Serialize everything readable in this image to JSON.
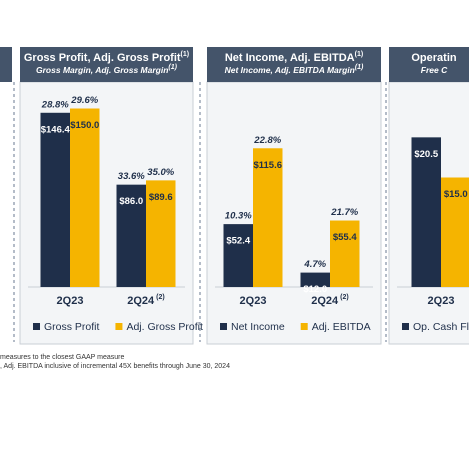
{
  "chart_data": [
    {
      "type": "bar",
      "title": "Gross Profit, Adj. Gross Profit",
      "title_note": "(1)",
      "subtitle": "Gross Margin, Adj. Gross Margin",
      "subtitle_note": "(1)",
      "categories": [
        "2Q23",
        "2Q24"
      ],
      "category_notes": [
        null,
        "(2)"
      ],
      "series": [
        {
          "name": "Gross Profit",
          "color": "#1f2f4a",
          "values": [
            146.4,
            86.0
          ],
          "value_labels": [
            "$146.4",
            "$86.0"
          ],
          "margins": [
            28.8,
            33.6
          ],
          "margin_labels": [
            "28.8%",
            "33.6%"
          ]
        },
        {
          "name": "Adj. Gross Profit",
          "color": "#f5b400",
          "values": [
            150.0,
            89.6
          ],
          "value_labels": [
            "$150.0",
            "$89.6"
          ],
          "margins": [
            29.6,
            35.0
          ],
          "margin_labels": [
            "29.6%",
            "35.0%"
          ]
        }
      ]
    },
    {
      "type": "bar",
      "title": "Net Income, Adj. EBITDA",
      "title_note": "(1)",
      "subtitle": "Net Income, Adj. EBITDA Margin",
      "subtitle_note": "(1)",
      "categories": [
        "2Q23",
        "2Q24"
      ],
      "category_notes": [
        null,
        "(2)"
      ],
      "series": [
        {
          "name": "Net Income",
          "color": "#1f2f4a",
          "values": [
            52.4,
            12.0
          ],
          "value_labels": [
            "$52.4",
            "$12.0"
          ],
          "margins": [
            10.3,
            4.7
          ],
          "margin_labels": [
            "10.3%",
            "4.7%"
          ]
        },
        {
          "name": "Adj. EBITDA",
          "color": "#f5b400",
          "values": [
            115.6,
            55.4
          ],
          "value_labels": [
            "$115.6",
            "$55.4"
          ],
          "margins": [
            22.8,
            21.7
          ],
          "margin_labels": [
            "22.8%",
            "21.7%"
          ]
        }
      ]
    },
    {
      "type": "bar",
      "title": "Operatin",
      "subtitle": "Free C",
      "categories": [
        "2Q23"
      ],
      "series": [
        {
          "name": "Op. Cash Flo",
          "color": "#1f2f4a",
          "values": [
            20.5
          ],
          "value_labels": [
            "$20.5"
          ]
        },
        {
          "name": null,
          "color": "#f5b400",
          "values": [
            15.0
          ],
          "value_labels": [
            "$15.0"
          ]
        }
      ]
    }
  ],
  "footnotes": [
    "measures to the closest GAAP measure",
    ", Adj. EBITDA inclusive of incremental 45X benefits through June 30, 2024"
  ]
}
